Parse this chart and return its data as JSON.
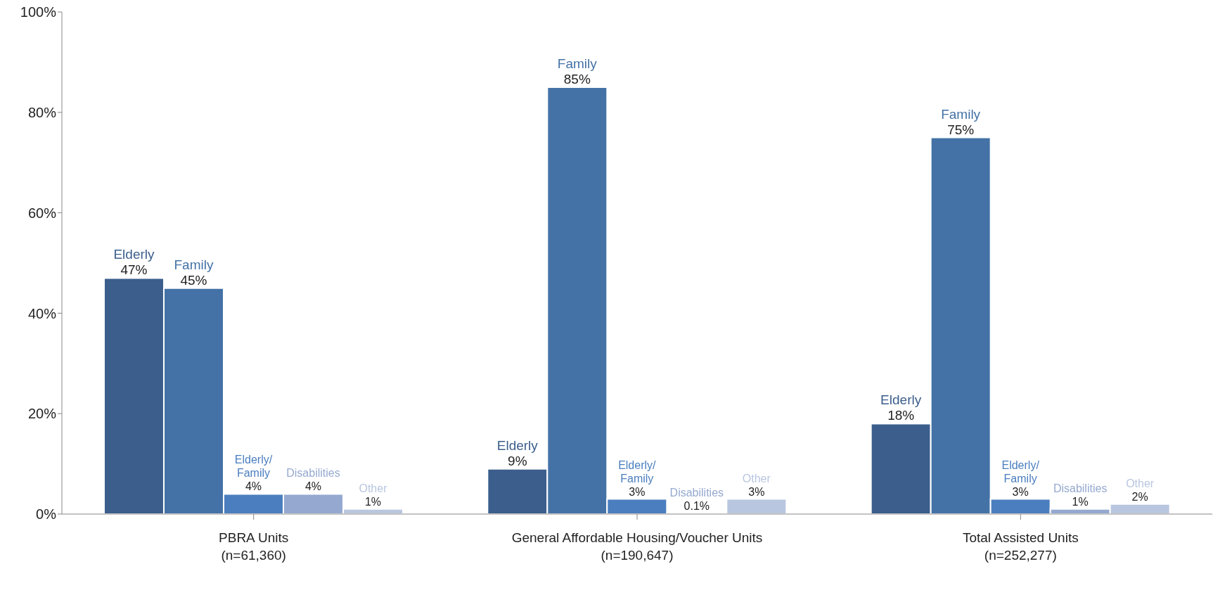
{
  "chart_data": {
    "type": "bar",
    "categories": [
      "PBRA Units (n=61,360)",
      "General Affordable Housing/Voucher Units (n=190,647)",
      "Total Assisted Units (n=252,277)"
    ],
    "ylim": [
      0,
      100
    ],
    "yticks": [
      {
        "value": 0,
        "label": "0%"
      },
      {
        "value": 20,
        "label": "20%"
      },
      {
        "value": 40,
        "label": "40%"
      },
      {
        "value": 60,
        "label": "60%"
      },
      {
        "value": 80,
        "label": "80%"
      },
      {
        "value": 100,
        "label": "100%"
      }
    ],
    "grid": false,
    "legend": false,
    "series": [
      {
        "name": "Elderly",
        "color": "#3b5e8c",
        "values": [
          47,
          9,
          18
        ],
        "value_labels": [
          "47%",
          "9%",
          "18%"
        ]
      },
      {
        "name": "Family",
        "color": "#4472a6",
        "values": [
          45,
          85,
          75
        ],
        "value_labels": [
          "45%",
          "85%",
          "75%"
        ]
      },
      {
        "name": "Elderly/ Family",
        "color": "#4a7ebf",
        "values": [
          4,
          3,
          3
        ],
        "value_labels": [
          "4%",
          "3%",
          "3%"
        ]
      },
      {
        "name": "Disabilities",
        "color": "#95a9d0",
        "values": [
          4,
          0.1,
          1
        ],
        "value_labels": [
          "4%",
          "0.1%",
          "1%"
        ]
      },
      {
        "name": "Other",
        "color": "#b9c6e0",
        "values": [
          1,
          3,
          2
        ],
        "value_labels": [
          "1%",
          "3%",
          "2%"
        ]
      }
    ]
  }
}
